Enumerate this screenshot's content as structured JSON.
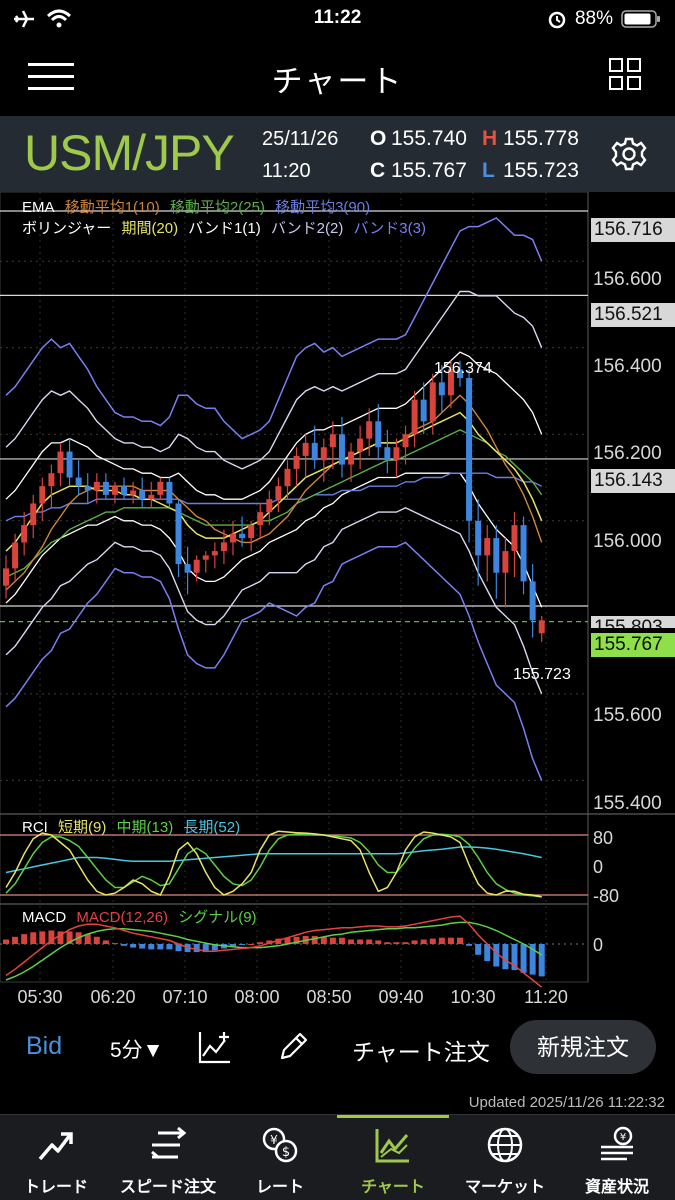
{
  "status_bar": {
    "time": "11:22",
    "battery": "88%"
  },
  "nav": {
    "title": "チャート"
  },
  "header": {
    "symbol": "USM/JPY",
    "date": "25/11/26",
    "time": "11:20",
    "open_label": "O",
    "open": "155.740",
    "high_label": "H",
    "high": "155.778",
    "close_label": "C",
    "close": "155.767",
    "low_label": "L",
    "low": "155.723"
  },
  "legend": {
    "ema": "EMA",
    "ma1": "移動平均1(10)",
    "ma2": "移動平均2(25)",
    "ma3": "移動平均3(90)",
    "bb": "ボリンジャー",
    "period": "期間(20)",
    "band1": "バンド1(1)",
    "band2": "バンド2(2)",
    "band3": "バンド3(3)"
  },
  "price_axis": {
    "ticks": [
      "156.600",
      "156.400",
      "156.200",
      "156.000",
      "155.600",
      "155.400"
    ],
    "tags": [
      "156.716",
      "156.521",
      "156.143",
      "155.803"
    ],
    "current": "155.767",
    "high_marker": "156.374",
    "low_marker": "155.723"
  },
  "rci": {
    "label": "RCI",
    "short": "短期(9)",
    "mid": "中期(13)",
    "long": "長期(52)",
    "levels": [
      "80",
      "0",
      "-80"
    ]
  },
  "macd": {
    "label": "MACD",
    "macd": "MACD(12,26)",
    "signal": "シグナル(9)",
    "level": "0"
  },
  "time_axis": [
    "05:30",
    "06:20",
    "07:10",
    "08:00",
    "08:50",
    "09:40",
    "10:30",
    "11:20"
  ],
  "toolbar": {
    "bid": "Bid",
    "interval": "5分▼",
    "chart_order": "チャート注文",
    "new_order": "新規注文"
  },
  "updated": "Updated  2025/11/26 11:22:32",
  "tabs": [
    "トレード",
    "スピード注文",
    "レート",
    "チャート",
    "マーケット",
    "資産状況"
  ],
  "colors": {
    "accent_green": "#9fc94b",
    "up": "#d8433c",
    "down": "#3d86df",
    "ma1": "#d1843a",
    "ma2": "#5bb048",
    "ma3": "#6a7ee0",
    "bb_mid": "#e8e463",
    "bb1": "#ffffff",
    "bb2": "#d8d8f0",
    "bb3": "#7a7ff0"
  },
  "chart_data": {
    "type": "candlestick",
    "interval": "5分",
    "y_range": [
      155.35,
      156.76
    ],
    "candles": [
      [
        155.85,
        155.92,
        155.82,
        155.89
      ],
      [
        155.89,
        155.97,
        155.86,
        155.95
      ],
      [
        155.95,
        156.02,
        155.92,
        155.99
      ],
      [
        155.99,
        156.06,
        155.96,
        156.04
      ],
      [
        156.04,
        156.1,
        156.0,
        156.08
      ],
      [
        156.08,
        156.13,
        156.03,
        156.11
      ],
      [
        156.11,
        156.18,
        156.08,
        156.16
      ],
      [
        156.16,
        156.19,
        156.08,
        156.1
      ],
      [
        156.1,
        156.14,
        156.06,
        156.08
      ],
      [
        156.08,
        156.11,
        156.04,
        156.07
      ],
      [
        156.07,
        156.11,
        156.04,
        156.09
      ],
      [
        156.09,
        156.11,
        156.05,
        156.06
      ],
      [
        156.06,
        156.09,
        156.04,
        156.08
      ],
      [
        156.08,
        156.1,
        156.05,
        156.06
      ],
      [
        156.06,
        156.09,
        156.04,
        156.07
      ],
      [
        156.07,
        156.1,
        156.03,
        156.05
      ],
      [
        156.05,
        156.09,
        156.03,
        156.06
      ],
      [
        156.06,
        156.1,
        156.05,
        156.09
      ],
      [
        156.09,
        156.1,
        156.03,
        156.04
      ],
      [
        156.04,
        156.05,
        155.87,
        155.9
      ],
      [
        155.9,
        155.94,
        155.83,
        155.88
      ],
      [
        155.88,
        155.92,
        155.86,
        155.91
      ],
      [
        155.91,
        155.93,
        155.88,
        155.92
      ],
      [
        155.92,
        155.95,
        155.89,
        155.93
      ],
      [
        155.93,
        155.98,
        155.9,
        155.95
      ],
      [
        155.95,
        156.0,
        155.92,
        155.97
      ],
      [
        155.97,
        156.01,
        155.94,
        155.96
      ],
      [
        155.96,
        156.0,
        155.93,
        155.99
      ],
      [
        155.99,
        156.04,
        155.96,
        156.02
      ],
      [
        156.02,
        156.07,
        155.99,
        156.05
      ],
      [
        156.05,
        156.1,
        156.02,
        156.08
      ],
      [
        156.08,
        156.14,
        156.05,
        156.12
      ],
      [
        156.12,
        156.17,
        156.08,
        156.15
      ],
      [
        156.15,
        156.2,
        156.1,
        156.18
      ],
      [
        156.18,
        156.22,
        156.12,
        156.14
      ],
      [
        156.14,
        156.19,
        156.09,
        156.17
      ],
      [
        156.17,
        156.23,
        156.12,
        156.2
      ],
      [
        156.2,
        156.24,
        156.1,
        156.13
      ],
      [
        156.13,
        156.18,
        156.09,
        156.16
      ],
      [
        156.16,
        156.22,
        156.12,
        156.19
      ],
      [
        156.19,
        156.26,
        156.15,
        156.23
      ],
      [
        156.23,
        156.27,
        156.14,
        156.17
      ],
      [
        156.17,
        156.21,
        156.11,
        156.14
      ],
      [
        156.14,
        156.19,
        156.1,
        156.17
      ],
      [
        156.17,
        156.22,
        156.13,
        156.2
      ],
      [
        156.2,
        156.3,
        156.17,
        156.28
      ],
      [
        156.28,
        156.32,
        156.2,
        156.23
      ],
      [
        156.23,
        156.34,
        156.2,
        156.32
      ],
      [
        156.32,
        156.36,
        156.25,
        156.29
      ],
      [
        156.29,
        156.37,
        156.26,
        156.35
      ],
      [
        156.35,
        156.37,
        156.31,
        156.33
      ],
      [
        156.33,
        156.35,
        155.95,
        156.0
      ],
      [
        156.0,
        156.05,
        155.85,
        155.92
      ],
      [
        155.92,
        155.99,
        155.86,
        155.96
      ],
      [
        155.96,
        155.99,
        155.82,
        155.88
      ],
      [
        155.88,
        155.96,
        155.8,
        155.93
      ],
      [
        155.93,
        156.02,
        155.87,
        155.99
      ],
      [
        155.99,
        156.01,
        155.83,
        155.86
      ],
      [
        155.86,
        155.9,
        155.73,
        155.77
      ],
      [
        155.74,
        155.78,
        155.72,
        155.77
      ]
    ],
    "bollinger_mid": [
      155.93,
      155.95,
      155.98,
      156.01,
      156.04,
      156.06,
      156.07,
      156.08,
      156.08,
      156.08,
      156.07,
      156.07,
      156.07,
      156.06,
      156.06,
      156.05,
      156.05,
      156.04,
      156.03,
      156.02,
      155.99,
      155.97,
      155.96,
      155.96,
      155.96,
      155.97,
      155.98,
      155.99,
      156.0,
      156.02,
      156.04,
      156.06,
      156.08,
      156.1,
      156.11,
      156.12,
      156.13,
      156.14,
      156.15,
      156.16,
      156.17,
      156.18,
      156.18,
      156.18,
      156.19,
      156.2,
      156.21,
      156.22,
      156.23,
      156.24,
      156.25,
      156.23,
      156.2,
      156.18,
      156.16,
      156.14,
      156.12,
      156.09,
      156.05,
      156.0
    ],
    "bollinger_sigma": [
      0.12,
      0.12,
      0.12,
      0.12,
      0.12,
      0.12,
      0.11,
      0.11,
      0.1,
      0.09,
      0.08,
      0.07,
      0.06,
      0.06,
      0.06,
      0.06,
      0.06,
      0.06,
      0.07,
      0.09,
      0.1,
      0.1,
      0.1,
      0.1,
      0.09,
      0.08,
      0.07,
      0.07,
      0.07,
      0.07,
      0.08,
      0.09,
      0.1,
      0.1,
      0.1,
      0.09,
      0.09,
      0.08,
      0.08,
      0.08,
      0.08,
      0.08,
      0.08,
      0.08,
      0.08,
      0.09,
      0.1,
      0.11,
      0.12,
      0.13,
      0.14,
      0.15,
      0.16,
      0.17,
      0.18,
      0.18,
      0.18,
      0.19,
      0.2,
      0.2
    ],
    "ma_10": [
      155.84,
      155.86,
      155.88,
      155.91,
      155.94,
      155.98,
      156.01,
      156.04,
      156.06,
      156.07,
      156.08,
      156.08,
      156.08,
      156.08,
      156.08,
      156.07,
      156.07,
      156.07,
      156.07,
      156.05,
      156.03,
      156.01,
      156.0,
      155.98,
      155.97,
      155.96,
      155.95,
      155.95,
      155.96,
      155.97,
      155.99,
      156.01,
      156.04,
      156.07,
      156.09,
      156.11,
      156.13,
      156.14,
      156.15,
      156.16,
      156.17,
      156.18,
      156.18,
      156.18,
      156.19,
      156.21,
      156.22,
      156.23,
      156.25,
      156.27,
      156.29,
      156.27,
      156.24,
      156.21,
      156.17,
      156.13,
      156.1,
      156.06,
      156.01,
      155.95
    ],
    "ma_25": [
      155.87,
      155.88,
      155.89,
      155.91,
      155.93,
      155.95,
      155.96,
      155.98,
      155.99,
      156.0,
      156.01,
      156.02,
      156.02,
      156.03,
      156.03,
      156.03,
      156.03,
      156.03,
      156.03,
      156.02,
      156.01,
      156.0,
      155.99,
      155.99,
      155.99,
      155.99,
      155.99,
      155.99,
      156.0,
      156.0,
      156.01,
      156.02,
      156.04,
      156.05,
      156.06,
      156.07,
      156.08,
      156.09,
      156.1,
      156.11,
      156.12,
      156.13,
      156.14,
      156.14,
      156.15,
      156.16,
      156.17,
      156.18,
      156.19,
      156.2,
      156.21,
      156.2,
      156.19,
      156.18,
      156.16,
      156.15,
      156.13,
      156.11,
      156.09,
      156.06
    ],
    "ma_90": [
      156.0,
      156.01,
      156.01,
      156.02,
      156.02,
      156.03,
      156.03,
      156.04,
      156.04,
      156.04,
      156.05,
      156.05,
      156.05,
      156.05,
      156.05,
      156.05,
      156.05,
      156.05,
      156.05,
      156.05,
      156.04,
      156.04,
      156.04,
      156.04,
      156.04,
      156.04,
      156.04,
      156.04,
      156.04,
      156.04,
      156.05,
      156.05,
      156.05,
      156.05,
      156.06,
      156.06,
      156.06,
      156.07,
      156.07,
      156.07,
      156.08,
      156.08,
      156.08,
      156.08,
      156.09,
      156.09,
      156.1,
      156.1,
      156.1,
      156.11,
      156.11,
      156.11,
      156.11,
      156.11,
      156.1,
      156.1,
      156.1,
      156.09,
      156.09,
      156.08
    ],
    "rci_short": [
      -60,
      -20,
      30,
      70,
      85,
      80,
      60,
      40,
      0,
      -40,
      -70,
      -80,
      -75,
      -60,
      -40,
      -50,
      -70,
      -80,
      -30,
      40,
      60,
      30,
      -20,
      -60,
      -80,
      -70,
      -50,
      -20,
      40,
      80,
      90,
      88,
      86,
      85,
      83,
      80,
      75,
      70,
      65,
      40,
      -20,
      -70,
      -60,
      -20,
      40,
      75,
      88,
      85,
      80,
      75,
      60,
      0,
      -50,
      -75,
      -80,
      -70,
      -70,
      -78,
      -80,
      -85
    ],
    "rci_mid": [
      -75,
      -50,
      -10,
      30,
      60,
      75,
      75,
      65,
      50,
      20,
      -10,
      -40,
      -60,
      -60,
      -45,
      -30,
      -40,
      -55,
      -50,
      -10,
      30,
      45,
      30,
      0,
      -30,
      -50,
      -55,
      -40,
      -5,
      40,
      70,
      80,
      82,
      82,
      80,
      80,
      78,
      75,
      72,
      60,
      35,
      0,
      -20,
      -20,
      10,
      45,
      70,
      80,
      82,
      80,
      75,
      55,
      20,
      -20,
      -50,
      -65,
      -75,
      -80,
      -82,
      -85
    ],
    "rci_long": [
      -20,
      -15,
      -10,
      -5,
      0,
      5,
      10,
      15,
      20,
      20,
      20,
      18,
      15,
      12,
      10,
      10,
      10,
      10,
      10,
      12,
      14,
      16,
      18,
      20,
      22,
      24,
      26,
      28,
      30,
      30,
      30,
      30,
      30,
      30,
      30,
      30,
      30,
      30,
      30,
      30,
      30,
      30,
      30,
      30,
      32,
      35,
      38,
      40,
      42,
      45,
      48,
      48,
      47,
      45,
      42,
      38,
      34,
      30,
      25,
      20
    ],
    "macd_line": [
      -0.035,
      -0.028,
      -0.02,
      -0.012,
      -0.004,
      0.004,
      0.01,
      0.016,
      0.02,
      0.022,
      0.022,
      0.02,
      0.018,
      0.015,
      0.012,
      0.01,
      0.008,
      0.006,
      0.004,
      0.0,
      -0.004,
      -0.006,
      -0.008,
      -0.008,
      -0.007,
      -0.006,
      -0.005,
      -0.004,
      -0.002,
      0.001,
      0.004,
      0.007,
      0.01,
      0.013,
      0.015,
      0.016,
      0.017,
      0.018,
      0.018,
      0.019,
      0.02,
      0.02,
      0.019,
      0.019,
      0.02,
      0.022,
      0.024,
      0.026,
      0.028,
      0.03,
      0.031,
      0.022,
      0.01,
      0.0,
      -0.01,
      -0.018,
      -0.024,
      -0.032,
      -0.04,
      -0.048
    ],
    "macd_signal": [
      -0.04,
      -0.036,
      -0.031,
      -0.025,
      -0.018,
      -0.011,
      -0.004,
      0.002,
      0.007,
      0.011,
      0.014,
      0.016,
      0.017,
      0.017,
      0.016,
      0.015,
      0.014,
      0.012,
      0.01,
      0.008,
      0.005,
      0.003,
      0.001,
      -0.001,
      -0.002,
      -0.003,
      -0.004,
      -0.004,
      -0.004,
      -0.003,
      -0.002,
      0.0,
      0.002,
      0.004,
      0.006,
      0.008,
      0.01,
      0.011,
      0.013,
      0.014,
      0.015,
      0.016,
      0.017,
      0.017,
      0.018,
      0.018,
      0.019,
      0.02,
      0.021,
      0.023,
      0.024,
      0.024,
      0.022,
      0.019,
      0.015,
      0.01,
      0.005,
      0.0,
      -0.006,
      -0.012
    ]
  }
}
